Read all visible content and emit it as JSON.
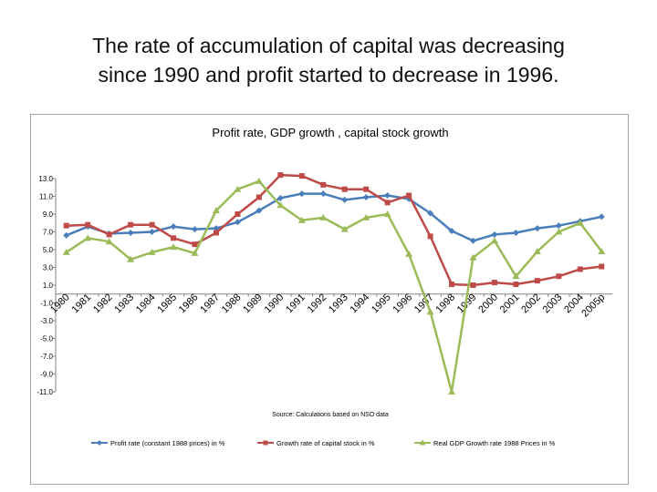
{
  "slide": {
    "title_line1": "The rate of accumulation of capital was decreasing",
    "title_line2": "since 1990 and profit started to decrease in 1996."
  },
  "chart_data": {
    "type": "line",
    "title": "Profit rate, GDP growth , capital stock  growth",
    "source": "Source:  Calculations based on NSO data",
    "categories": [
      "1980",
      "1981",
      "1982",
      "1983",
      "1984",
      "1985",
      "1986",
      "1987",
      "1988",
      "1989",
      "1990",
      "1991",
      "1992",
      "1993",
      "1994",
      "1995",
      "1996",
      "1997",
      "1998",
      "1999",
      "2000",
      "2001",
      "2002",
      "2003",
      "2004",
      "2005p"
    ],
    "y_ticks": [
      "13.0",
      "11.0",
      "9.0",
      "7.0",
      "5.0",
      "3.0",
      "1.0",
      "-1.0",
      "-3.0",
      "-5.0",
      "-7.0",
      "-9.0",
      "-11.0"
    ],
    "ylim": [
      -11,
      13
    ],
    "grid": false,
    "legend_position": "bottom",
    "series": [
      {
        "name": "Profit rate (constant 1988 prices) in %",
        "color": "#4a7ebb",
        "marker": "diamond",
        "values": [
          6.6,
          7.6,
          6.8,
          6.9,
          7.0,
          7.6,
          7.3,
          7.4,
          8.1,
          9.4,
          10.8,
          11.3,
          11.3,
          10.6,
          10.9,
          11.1,
          10.7,
          9.1,
          7.1,
          6.0,
          6.7,
          6.9,
          7.4,
          7.7,
          8.2,
          8.7
        ]
      },
      {
        "name": "Growth rate of capital stock in %",
        "color": "#be4b48",
        "marker": "square",
        "values": [
          7.7,
          7.8,
          6.7,
          7.8,
          7.8,
          6.3,
          5.6,
          6.9,
          9.0,
          10.9,
          13.4,
          13.3,
          12.3,
          11.8,
          11.8,
          10.3,
          11.1,
          6.5,
          1.1,
          1.0,
          1.3,
          1.1,
          1.5,
          2.0,
          2.8,
          3.1
        ]
      },
      {
        "name": "Real GDP Growth rate 1988 Prices in %",
        "color": "#9bbb59",
        "marker": "triangle",
        "values": [
          4.7,
          6.3,
          5.9,
          3.9,
          4.7,
          5.3,
          4.6,
          9.4,
          11.8,
          12.7,
          10.0,
          8.3,
          8.6,
          7.3,
          8.6,
          9.0,
          4.5,
          -2.0,
          -11.0,
          4.1,
          6.0,
          2.0,
          4.8,
          7.0,
          8.0,
          4.8
        ]
      }
    ]
  }
}
